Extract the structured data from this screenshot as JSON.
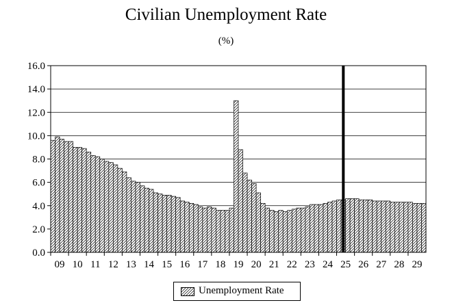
{
  "chart_data": {
    "type": "bar",
    "title": "Civilian Unemployment Rate",
    "subtitle": "(%)",
    "xlabel": "",
    "ylabel": "",
    "ylim": [
      0,
      16
    ],
    "yticks": [
      "0.0",
      "2.0",
      "4.0",
      "6.0",
      "8.0",
      "10.0",
      "12.0",
      "14.0",
      "16.0"
    ],
    "x_tick_labels": [
      "09",
      "10",
      "11",
      "12",
      "13",
      "14",
      "15",
      "16",
      "17",
      "18",
      "19",
      "20",
      "21",
      "22",
      "23",
      "24",
      "25",
      "26",
      "27",
      "28",
      "29"
    ],
    "start_year": 2009,
    "periods_per_year": 4,
    "grid": true,
    "legend_position": "bottom-center",
    "forecast_marker_index": 65,
    "series": [
      {
        "name": "Unemployment Rate",
        "fill": "hatched",
        "values": [
          9.6,
          9.9,
          9.7,
          9.5,
          9.5,
          9.0,
          9.0,
          8.9,
          8.6,
          8.3,
          8.2,
          8.0,
          7.8,
          7.7,
          7.5,
          7.2,
          6.9,
          6.4,
          6.1,
          6.0,
          5.7,
          5.5,
          5.4,
          5.1,
          5.0,
          4.9,
          4.9,
          4.8,
          4.7,
          4.4,
          4.3,
          4.2,
          4.1,
          3.9,
          3.8,
          3.9,
          3.8,
          3.6,
          3.6,
          3.6,
          3.8,
          13.0,
          8.8,
          6.8,
          6.2,
          5.9,
          5.1,
          4.2,
          3.8,
          3.6,
          3.5,
          3.6,
          3.5,
          3.6,
          3.7,
          3.8,
          3.8,
          3.9,
          4.1,
          4.1,
          4.1,
          4.2,
          4.3,
          4.4,
          4.5,
          4.5,
          4.6,
          4.6,
          4.6,
          4.5,
          4.5,
          4.5,
          4.4,
          4.4,
          4.4,
          4.4,
          4.3,
          4.3,
          4.3,
          4.3,
          4.3,
          4.2,
          4.2,
          4.2
        ]
      }
    ]
  }
}
